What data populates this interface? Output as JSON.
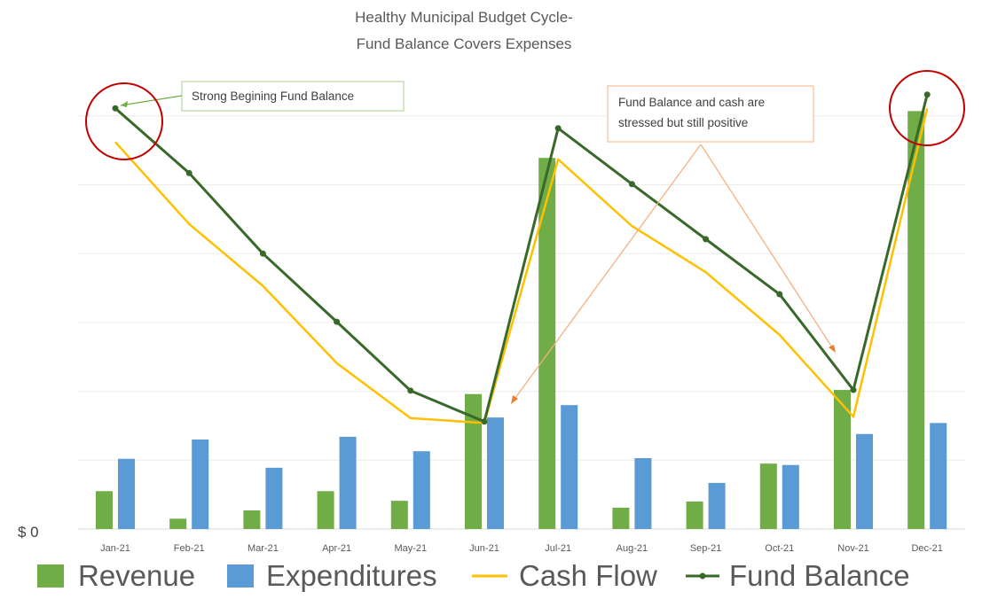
{
  "chart_data": {
    "type": "bar+line",
    "title": [
      "Healthy Municipal Budget Cycle-",
      "Fund Balance Covers Expenses"
    ],
    "xlabel": "",
    "ylabel": "",
    "y_tick_label": "$ 0",
    "ylim": [
      0,
      6.5
    ],
    "grid": true,
    "gridline_count": 6,
    "legend_position": "bottom",
    "categories": [
      "Jan-21",
      "Feb-21",
      "Mar-21",
      "Apr-21",
      "May-21",
      "Jun-21",
      "Jul-21",
      "Aug-21",
      "Sep-21",
      "Oct-21",
      "Nov-21",
      "Dec-21"
    ],
    "series": [
      {
        "name": "Revenue",
        "kind": "bar",
        "color": "#70ad47",
        "values": [
          0.55,
          0.15,
          0.27,
          0.55,
          0.41,
          1.96,
          5.39,
          0.31,
          0.4,
          0.95,
          2.02,
          6.07
        ]
      },
      {
        "name": "Expenditures",
        "kind": "bar",
        "color": "#5b9bd5",
        "values": [
          1.02,
          1.3,
          0.89,
          1.34,
          1.13,
          1.62,
          1.8,
          1.03,
          0.67,
          0.93,
          1.38,
          1.54
        ]
      },
      {
        "name": "Cash Flow",
        "kind": "line",
        "color": "#ffc000",
        "values": [
          5.62,
          4.43,
          3.53,
          2.41,
          1.61,
          1.54,
          5.37,
          4.4,
          3.73,
          2.82,
          1.63,
          6.11
        ]
      },
      {
        "name": "Fund Balance",
        "kind": "line-marker",
        "color": "#38692a",
        "values": [
          6.11,
          5.17,
          4.0,
          3.01,
          2.01,
          1.56,
          5.82,
          5.01,
          4.21,
          3.41,
          2.02,
          6.31
        ]
      }
    ],
    "annotations": [
      {
        "text": "Strong Begining Fund Balance",
        "color": "#70ad47",
        "points_to": [
          "Jan-21"
        ]
      },
      {
        "text": [
          "Fund Balance and cash are",
          "stressed but still positive"
        ],
        "color": "#f4b183",
        "points_to": [
          "Jun-21",
          "Nov-21"
        ]
      }
    ],
    "highlight_circles": {
      "color": "#c00000",
      "at": [
        "Jan-21",
        "Dec-21"
      ]
    }
  }
}
